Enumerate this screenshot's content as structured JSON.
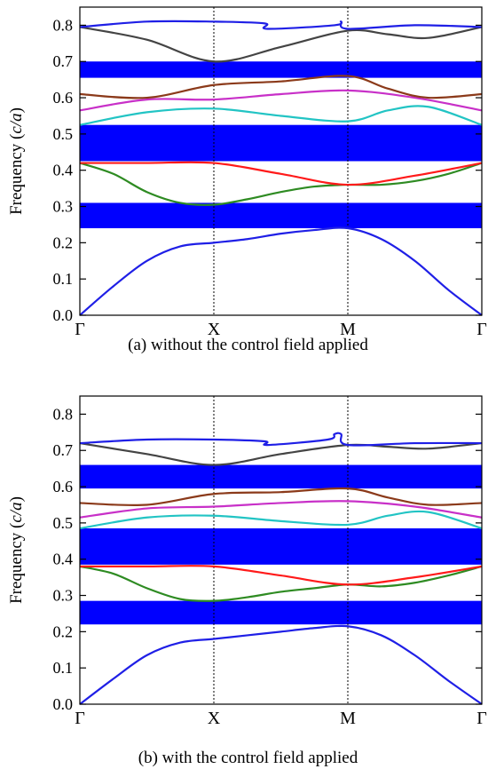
{
  "chart_data": [
    {
      "type": "line",
      "caption": "(a) without the control field applied",
      "ylabel": "Frequency (c/a)",
      "ylim": [
        0.0,
        0.85
      ],
      "y_ticks": [
        "0.0",
        "0.1",
        "0.2",
        "0.3",
        "0.4",
        "0.5",
        "0.6",
        "0.7",
        "0.8"
      ],
      "x_ticks": [
        "Γ",
        "X",
        "M",
        "Γ"
      ],
      "x_tick_positions": [
        0,
        1,
        2,
        3
      ],
      "band_gaps": [
        [
          0.24,
          0.31
        ],
        [
          0.425,
          0.525
        ],
        [
          0.655,
          0.7
        ]
      ],
      "band_gap_color": "#0000ff",
      "series": [
        {
          "color": "#1f1fe6",
          "x": [
            0,
            0.25,
            0.5,
            0.75,
            1,
            1.25,
            1.5,
            1.75,
            2,
            2.25,
            2.5,
            2.75,
            3
          ],
          "y": [
            0.0,
            0.08,
            0.15,
            0.19,
            0.2,
            0.21,
            0.225,
            0.235,
            0.24,
            0.21,
            0.15,
            0.07,
            0.0
          ]
        },
        {
          "color": "#2e8b22",
          "x": [
            0,
            0.25,
            0.5,
            0.75,
            1,
            1.25,
            1.5,
            1.75,
            2,
            2.25,
            2.5,
            2.75,
            3
          ],
          "y": [
            0.42,
            0.39,
            0.34,
            0.31,
            0.305,
            0.32,
            0.34,
            0.355,
            0.36,
            0.36,
            0.37,
            0.39,
            0.42
          ]
        },
        {
          "color": "#ff1a1a",
          "x": [
            0,
            0.5,
            1,
            1.5,
            2,
            2.5,
            3
          ],
          "y": [
            0.42,
            0.42,
            0.42,
            0.39,
            0.36,
            0.385,
            0.42
          ]
        },
        {
          "color": "#22c4c4",
          "x": [
            0,
            0.5,
            1,
            1.5,
            2,
            2.3,
            2.6,
            3
          ],
          "y": [
            0.525,
            0.56,
            0.57,
            0.55,
            0.535,
            0.565,
            0.575,
            0.525
          ]
        },
        {
          "color": "#c830c8",
          "x": [
            0,
            0.5,
            1,
            1.5,
            2,
            2.5,
            3
          ],
          "y": [
            0.565,
            0.595,
            0.595,
            0.61,
            0.62,
            0.6,
            0.565
          ]
        },
        {
          "color": "#8b3a1a",
          "x": [
            0,
            0.5,
            1,
            1.5,
            2,
            2.3,
            2.6,
            3
          ],
          "y": [
            0.61,
            0.6,
            0.635,
            0.645,
            0.66,
            0.625,
            0.6,
            0.61
          ]
        },
        {
          "color": "#444444",
          "x": [
            0,
            0.5,
            1,
            1.5,
            2,
            2.3,
            2.6,
            3
          ],
          "y": [
            0.795,
            0.76,
            0.7,
            0.74,
            0.785,
            0.775,
            0.765,
            0.795
          ]
        },
        {
          "color": "#1f1fe6",
          "x": [
            0,
            0.5,
            1,
            1.38,
            1.4,
            1.9,
            1.95,
            2,
            2.5,
            3
          ],
          "y": [
            0.795,
            0.81,
            0.81,
            0.805,
            0.79,
            0.8,
            0.81,
            0.79,
            0.8,
            0.795
          ]
        }
      ]
    },
    {
      "type": "line",
      "caption": "(b) with the control field applied",
      "ylabel": "Frequency (c/a)",
      "ylim": [
        0.0,
        0.85
      ],
      "y_ticks": [
        "0.0",
        "0.1",
        "0.2",
        "0.3",
        "0.4",
        "0.5",
        "0.6",
        "0.7",
        "0.8"
      ],
      "x_ticks": [
        "Γ",
        "X",
        "M",
        "Γ"
      ],
      "x_tick_positions": [
        0,
        1,
        2,
        3
      ],
      "band_gaps": [
        [
          0.22,
          0.285
        ],
        [
          0.385,
          0.485
        ],
        [
          0.595,
          0.66
        ]
      ],
      "band_gap_color": "#0000ff",
      "series": [
        {
          "color": "#1f1fe6",
          "x": [
            0,
            0.25,
            0.5,
            0.75,
            1,
            1.25,
            1.5,
            1.75,
            2,
            2.25,
            2.5,
            2.75,
            3
          ],
          "y": [
            0.0,
            0.07,
            0.135,
            0.17,
            0.18,
            0.19,
            0.2,
            0.21,
            0.215,
            0.19,
            0.135,
            0.065,
            0.0
          ]
        },
        {
          "color": "#2e8b22",
          "x": [
            0,
            0.25,
            0.5,
            0.75,
            1,
            1.25,
            1.5,
            1.75,
            2,
            2.25,
            2.5,
            2.75,
            3
          ],
          "y": [
            0.38,
            0.36,
            0.32,
            0.29,
            0.285,
            0.295,
            0.31,
            0.32,
            0.33,
            0.325,
            0.335,
            0.355,
            0.38
          ]
        },
        {
          "color": "#ff1a1a",
          "x": [
            0,
            0.5,
            1,
            1.5,
            2,
            2.5,
            3
          ],
          "y": [
            0.38,
            0.38,
            0.38,
            0.355,
            0.33,
            0.35,
            0.38
          ]
        },
        {
          "color": "#22c4c4",
          "x": [
            0,
            0.5,
            1,
            1.5,
            2,
            2.3,
            2.6,
            3
          ],
          "y": [
            0.485,
            0.515,
            0.52,
            0.505,
            0.495,
            0.52,
            0.53,
            0.485
          ]
        },
        {
          "color": "#c830c8",
          "x": [
            0,
            0.5,
            1,
            1.5,
            2,
            2.5,
            3
          ],
          "y": [
            0.515,
            0.54,
            0.545,
            0.555,
            0.56,
            0.545,
            0.515
          ]
        },
        {
          "color": "#8b3a1a",
          "x": [
            0,
            0.5,
            1,
            1.5,
            2,
            2.3,
            2.6,
            3
          ],
          "y": [
            0.555,
            0.55,
            0.58,
            0.585,
            0.595,
            0.57,
            0.55,
            0.555
          ]
        },
        {
          "color": "#444444",
          "x": [
            0,
            0.5,
            1,
            1.5,
            2,
            2.3,
            2.6,
            3
          ],
          "y": [
            0.72,
            0.69,
            0.66,
            0.69,
            0.715,
            0.71,
            0.705,
            0.72
          ]
        },
        {
          "color": "#1f1fe6",
          "x": [
            0,
            0.5,
            1,
            1.38,
            1.4,
            1.85,
            1.9,
            1.95,
            2,
            2.5,
            3
          ],
          "y": [
            0.72,
            0.73,
            0.73,
            0.725,
            0.715,
            0.73,
            0.745,
            0.745,
            0.715,
            0.72,
            0.72
          ]
        }
      ]
    }
  ]
}
